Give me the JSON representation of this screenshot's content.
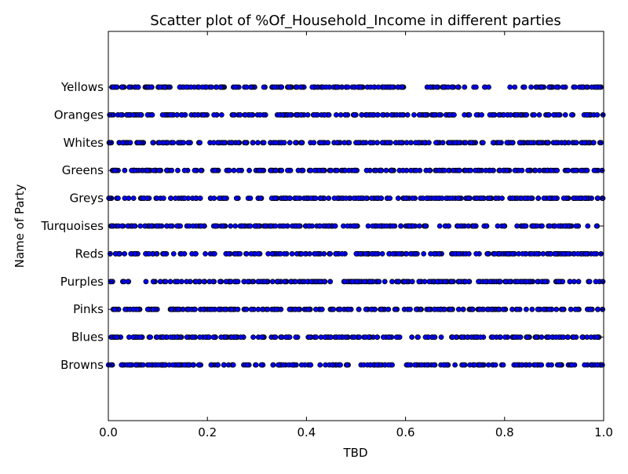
{
  "chart_data": {
    "type": "scatter",
    "title": "Scatter plot of %Of_Household_Income in different parties",
    "xlabel": "TBD",
    "ylabel": "Name of Party",
    "xlim": [
      0.0,
      1.0
    ],
    "x_ticks": [
      "0.0",
      "0.2",
      "0.4",
      "0.6",
      "0.8",
      "1.0"
    ],
    "categories": [
      "Browns",
      "Blues",
      "Pinks",
      "Purples",
      "Reds",
      "Turquoises",
      "Greys",
      "Greens",
      "Whites",
      "Oranges",
      "Yellows"
    ],
    "grid": false,
    "legend": "none",
    "marker_color": "#0000ff",
    "marker_edge_color": "#000000",
    "points_per_category": 220,
    "series": [
      {
        "values": [
          {
            "category": "Browns",
            "x": [
              0.0,
              1.0
            ]
          },
          {
            "category": "Blues",
            "x": [
              0.0,
              1.0
            ]
          },
          {
            "category": "Pinks",
            "x": [
              0.0,
              1.0
            ]
          },
          {
            "category": "Purples",
            "x": [
              0.0,
              1.0
            ]
          },
          {
            "category": "Reds",
            "x": [
              0.0,
              0.02,
              0.04,
              1.0
            ]
          },
          {
            "category": "Turquoises",
            "x": [
              0.0,
              1.0
            ]
          },
          {
            "category": "Greys",
            "x": [
              0.0,
              1.0
            ]
          },
          {
            "category": "Greens",
            "x": [
              0.0,
              1.0
            ]
          },
          {
            "category": "Whites",
            "x": [
              0.0,
              0.06,
              0.12,
              0.14,
              1.0
            ]
          },
          {
            "category": "Oranges",
            "x": [
              0.0,
              1.0
            ]
          },
          {
            "category": "Yellows",
            "x": [
              0.0,
              1.0
            ]
          }
        ]
      }
    ]
  }
}
